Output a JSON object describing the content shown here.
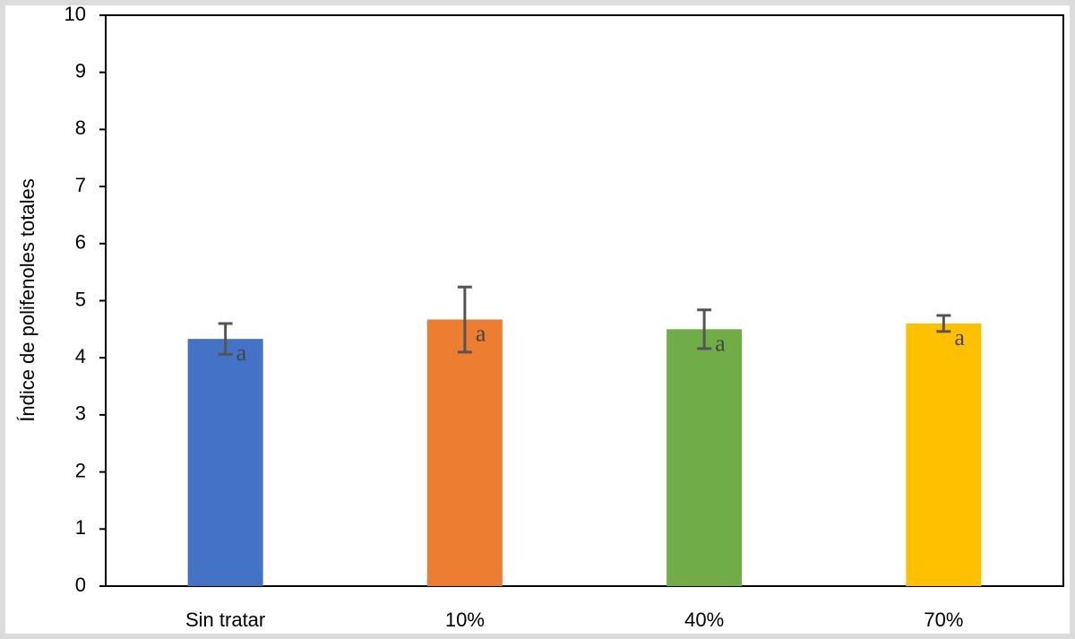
{
  "chart_data": {
    "type": "bar",
    "y_label": "Índice de polifenoles totales",
    "categories": [
      "Sin tratar",
      "10%",
      "40%",
      "70%"
    ],
    "values": [
      4.33,
      4.67,
      4.5,
      4.6
    ],
    "errors": [
      0.27,
      0.57,
      0.34,
      0.14
    ],
    "annotations": [
      "a",
      "a",
      "a",
      "a"
    ],
    "colors": [
      "#4472c4",
      "#ed7d31",
      "#70ad47",
      "#ffc000"
    ],
    "ylim": [
      0,
      10
    ],
    "yticks": [
      0,
      1,
      2,
      3,
      4,
      5,
      6,
      7,
      8,
      9,
      10
    ],
    "grid": false
  }
}
